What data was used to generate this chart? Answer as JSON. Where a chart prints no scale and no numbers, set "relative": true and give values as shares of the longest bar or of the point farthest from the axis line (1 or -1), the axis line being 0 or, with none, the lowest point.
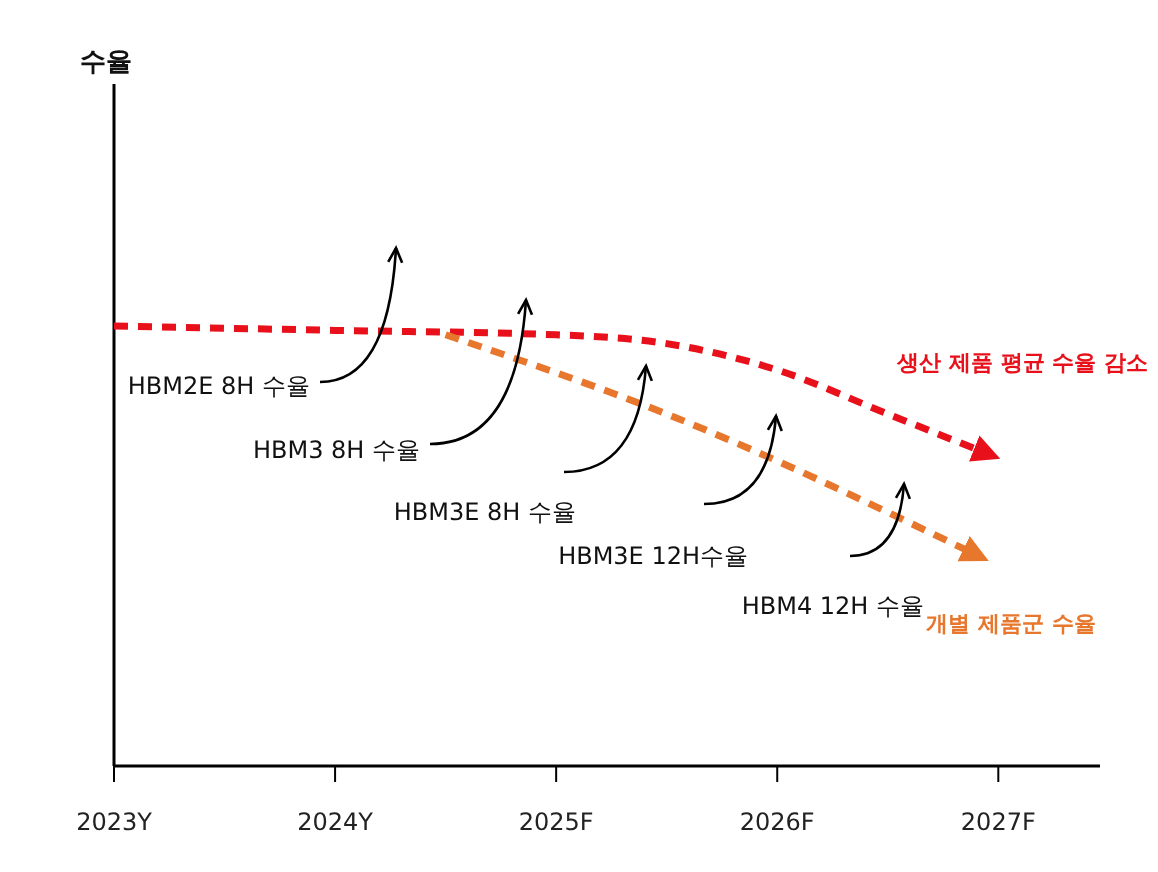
{
  "chart_data": {
    "type": "line",
    "relative": true,
    "legend": false,
    "line_style": "dashed",
    "marker": "none",
    "xlim": [
      2023,
      2027.46
    ],
    "xticks": [
      {
        "value": 2023,
        "label": "2023Y"
      },
      {
        "value": 2024,
        "label": "2024Y"
      },
      {
        "value": 2025,
        "label": "2025F"
      },
      {
        "value": 2026,
        "label": "2026F"
      },
      {
        "value": 2027,
        "label": "2027F"
      }
    ],
    "series": [
      {
        "name": "생산 제품 평균 수율 감소",
        "color": "#e8101a",
        "x": [
          2023,
          2024,
          2025,
          2025.5,
          2026,
          2026.5,
          2026.95
        ],
        "values": [
          1,
          0.99,
          0.98,
          0.96,
          0.9,
          0.8,
          0.71
        ]
      },
      {
        "name": "개별 제품군 수율",
        "color": "#e8772e",
        "x": [
          2024.5,
          2025.5,
          2026.9
        ],
        "values": [
          0.98,
          0.8,
          0.48
        ]
      }
    ],
    "annotations": [
      "수율",
      "HBM2E 8H 수율",
      "HBM3 8H 수율",
      "HBM3E 8H 수율",
      "HBM3E 12H수율",
      "HBM4 12H 수율"
    ]
  }
}
